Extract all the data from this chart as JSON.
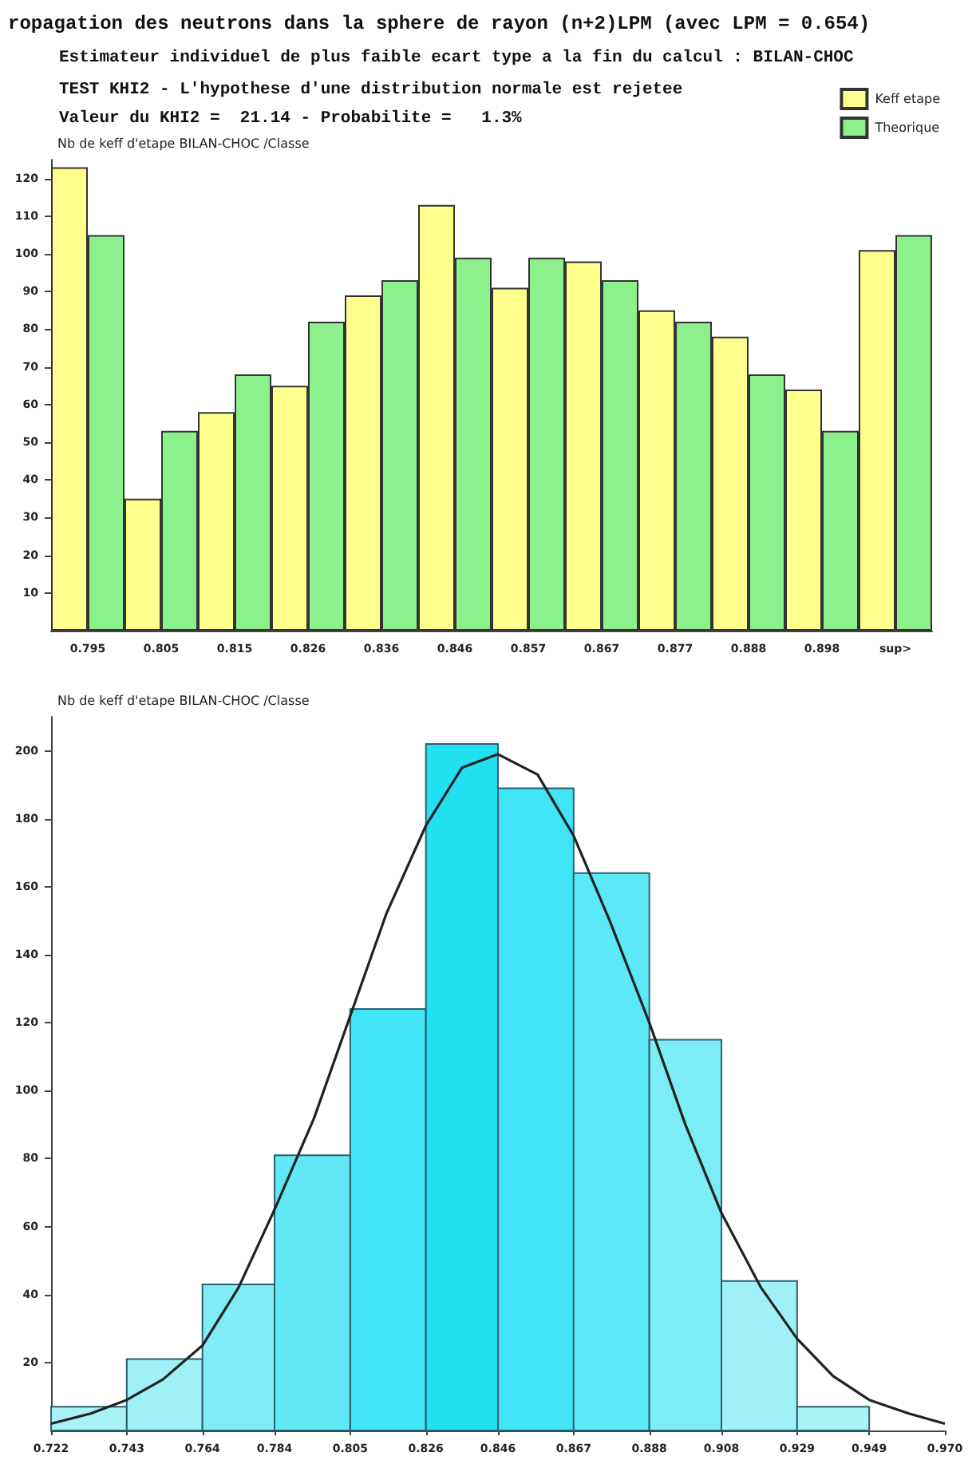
{
  "chart_data": [
    {
      "type": "bar",
      "title": "ropagation des neutrons dans la sphere de rayon (n+2)LPM (avec LPM = 0.654)",
      "subtitle": "Estimateur individuel de plus faible ecart type a la fin du calcul : BILAN-CHOC",
      "annotations": [
        "TEST KHI2 - L'hypothese d'une distribution normale est rejetee",
        "Valeur du KHI2 =  21.14 - Probabilite =   1.3%"
      ],
      "ylabel": "Nb de keff d'etape BILAN-CHOC /Classe",
      "categories": [
        "0.795",
        "0.805",
        "0.815",
        "0.826",
        "0.836",
        "0.846",
        "0.857",
        "0.867",
        "0.877",
        "0.888",
        "0.898",
        "sup>"
      ],
      "series": [
        {
          "name": "Keff etape",
          "color": "#ffff8c",
          "values": [
            123,
            35,
            58,
            65,
            89,
            113,
            91,
            98,
            85,
            78,
            64,
            101
          ]
        },
        {
          "name": "Theorique",
          "color": "#8cf08c",
          "values": [
            105,
            53,
            68,
            82,
            93,
            99,
            99,
            93,
            82,
            68,
            53,
            105
          ]
        }
      ],
      "ylim": [
        0,
        125
      ],
      "yticks": [
        10,
        20,
        30,
        40,
        50,
        60,
        70,
        80,
        90,
        100,
        110,
        120
      ],
      "legend": "top right",
      "grid": false
    },
    {
      "type": "histogram",
      "ylabel": "Nb de keff d'etape BILAN-CHOC /Classe",
      "series": [
        {
          "type": "histogram",
          "bins": [
            0.722,
            0.743,
            0.764,
            0.784,
            0.805,
            0.826,
            0.846,
            0.867,
            0.888,
            0.908,
            0.929,
            0.949
          ],
          "values": [
            7,
            21,
            43,
            81,
            124,
            202,
            189,
            164,
            115,
            44,
            7
          ],
          "colors": [
            "#a8f2f8",
            "#a0f0f8",
            "#80ecf6",
            "#60e8f4",
            "#40e4f4",
            "#20e0f2",
            "#40e4f4",
            "#5ce8f6",
            "#7cecf6",
            "#a0f0f8",
            "#a8f2f8"
          ]
        },
        {
          "type": "line",
          "color": "#222222",
          "marker": "none",
          "x": [
            0.722,
            0.733,
            0.743,
            0.753,
            0.764,
            0.774,
            0.784,
            0.795,
            0.805,
            0.815,
            0.826,
            0.836,
            0.846,
            0.857,
            0.867,
            0.877,
            0.888,
            0.898,
            0.908,
            0.919,
            0.929,
            0.939,
            0.949,
            0.96,
            0.97
          ],
          "values": [
            2,
            5,
            9,
            15,
            25,
            42,
            65,
            92,
            122,
            152,
            178,
            195,
            199,
            193,
            175,
            150,
            120,
            90,
            64,
            42,
            27,
            16,
            9,
            5,
            2
          ]
        }
      ],
      "xlim": [
        0.722,
        0.97
      ],
      "xticks": [
        0.722,
        0.743,
        0.764,
        0.784,
        0.805,
        0.826,
        0.846,
        0.867,
        0.888,
        0.908,
        0.929,
        0.949,
        {
          "value": 0.97,
          "label": "0.970"
        }
      ],
      "ylim": [
        0,
        210
      ],
      "yticks": [
        20,
        40,
        60,
        80,
        100,
        120,
        140,
        160,
        180,
        200
      ],
      "grid": false
    }
  ]
}
